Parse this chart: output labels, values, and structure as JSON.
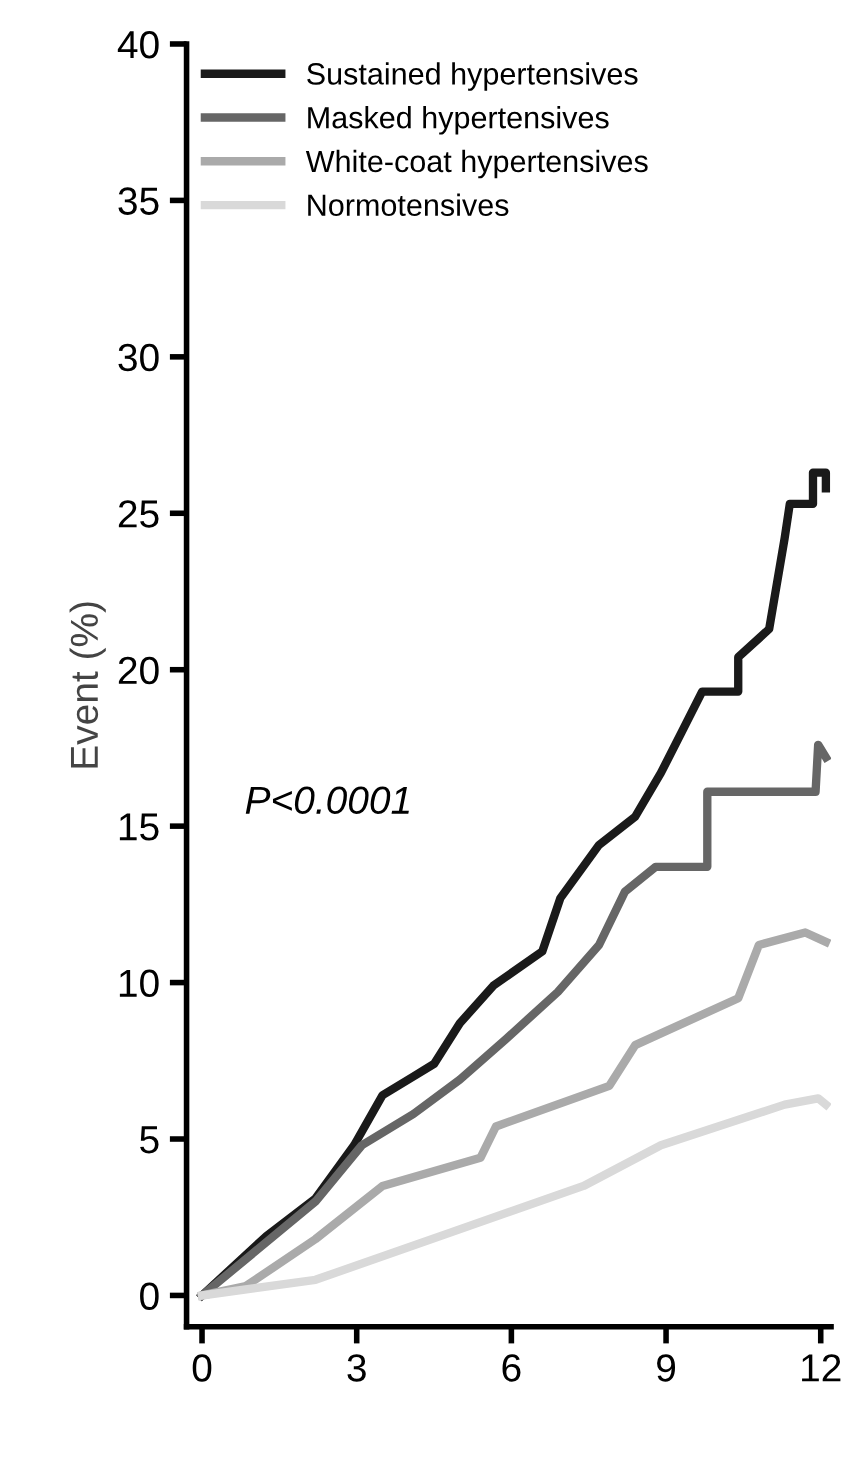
{
  "chart_data": {
    "type": "line",
    "ylabel": "Event (%)",
    "annotations": [
      "P<0.0001"
    ],
    "xlim": [
      -0.3,
      12.2
    ],
    "ylim": [
      -1,
      40
    ],
    "xticks": [
      0,
      3,
      6,
      9,
      12
    ],
    "yticks": [
      0,
      5,
      10,
      15,
      20,
      25,
      30,
      35,
      40
    ],
    "grid": false,
    "legend": "top left",
    "marker": "none",
    "line_style": "solid",
    "series": [
      {
        "name": "Sustained hypertensives",
        "color": "#1a1a1a",
        "x": [
          0,
          1.25,
          2.2,
          2.95,
          3.5,
          4.1,
          4.5,
          5.0,
          5.65,
          6.6,
          6.95,
          7.7,
          8.4,
          8.9,
          9.3,
          9.7,
          10.4,
          10.4,
          11.0,
          11.3,
          11.4,
          11.85,
          11.85,
          12.1,
          12.1
        ],
        "values": [
          0,
          1.9,
          3.1,
          4.8,
          6.4,
          7.0,
          7.4,
          8.7,
          9.9,
          11.0,
          12.7,
          14.4,
          15.3,
          16.7,
          18.0,
          19.3,
          19.3,
          20.4,
          21.3,
          24.2,
          25.3,
          25.3,
          26.3,
          26.3,
          25.8
        ]
      },
      {
        "name": "Masked hypertensives",
        "color": "#666666",
        "x": [
          0,
          2.2,
          3.1,
          4.1,
          5.0,
          5.9,
          6.9,
          7.7,
          8.2,
          8.8,
          9.8,
          9.8,
          11.9,
          11.95,
          12.1
        ],
        "values": [
          0,
          3.0,
          4.8,
          5.8,
          6.9,
          8.2,
          9.7,
          11.2,
          12.9,
          13.7,
          13.7,
          16.1,
          16.1,
          17.6,
          17.2
        ]
      },
      {
        "name": "White-coat hypertensives",
        "color": "#aaaaaa",
        "x": [
          0,
          0.85,
          2.2,
          3.5,
          5.4,
          5.7,
          7.9,
          8.4,
          10.4,
          10.8,
          11.7,
          12.1
        ],
        "values": [
          0,
          0.3,
          1.8,
          3.5,
          4.4,
          5.4,
          6.7,
          8.0,
          9.5,
          11.2,
          11.6,
          11.3
        ]
      },
      {
        "name": "Normotensives",
        "color": "#d9d9d9",
        "x": [
          0,
          2.2,
          4.8,
          7.4,
          8.9,
          11.3,
          11.95,
          12.1
        ],
        "values": [
          0,
          0.5,
          2.0,
          3.5,
          4.8,
          6.1,
          6.3,
          6.1
        ]
      }
    ]
  }
}
